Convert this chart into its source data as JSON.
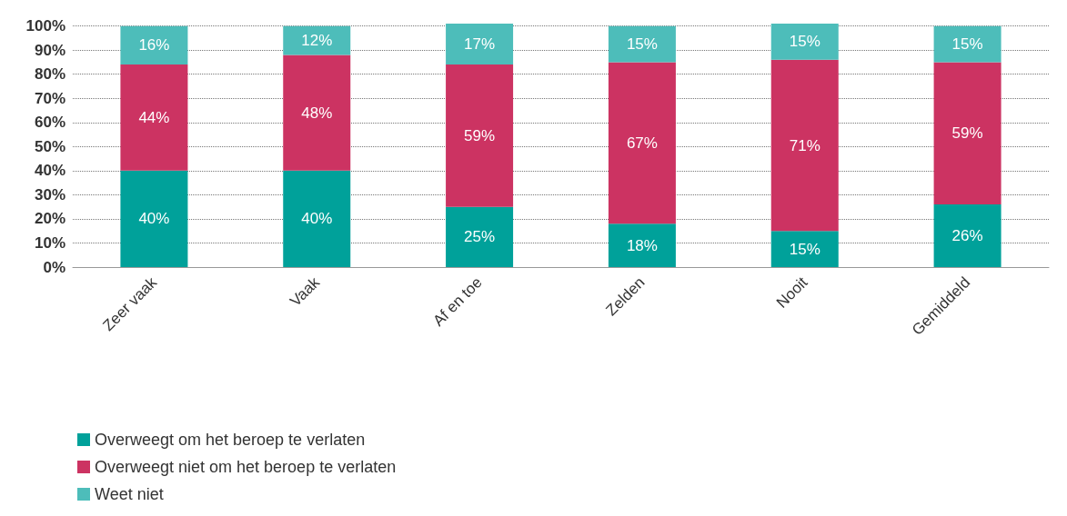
{
  "chart_data": {
    "type": "bar",
    "stacked": true,
    "categories": [
      "Zeer vaak",
      "Vaak",
      "Af en toe",
      "Zelden",
      "Nooit",
      "Gemiddeld"
    ],
    "series": [
      {
        "name": "Overweegt om het beroep te verlaten",
        "color": "#00a19a",
        "values": [
          40,
          40,
          25,
          18,
          15,
          26
        ],
        "value_labels": [
          "40%",
          "40%",
          "25%",
          "18%",
          "15%",
          "26%"
        ]
      },
      {
        "name": "Overweegt niet om het beroep te verlaten",
        "color": "#cc3362",
        "values": [
          44,
          48,
          59,
          67,
          71,
          59
        ],
        "value_labels": [
          "44%",
          "48%",
          "59%",
          "67%",
          "71%",
          "59%"
        ]
      },
      {
        "name": "Weet niet",
        "color": "#4dbdba",
        "values": [
          16,
          12,
          17,
          15,
          15,
          15
        ],
        "value_labels": [
          "16%",
          "12%",
          "17%",
          "15%",
          "15%",
          "15%"
        ]
      }
    ],
    "ylim": [
      0,
      101
    ],
    "yticks": [
      {
        "value": 0,
        "label": "0%"
      },
      {
        "value": 10,
        "label": "10%"
      },
      {
        "value": 20,
        "label": "20%"
      },
      {
        "value": 30,
        "label": "30%"
      },
      {
        "value": 40,
        "label": "40%"
      },
      {
        "value": 50,
        "label": "50%"
      },
      {
        "value": 60,
        "label": "60%"
      },
      {
        "value": 70,
        "label": "70%"
      },
      {
        "value": 80,
        "label": "80%"
      },
      {
        "value": 90,
        "label": "90%"
      },
      {
        "value": 100,
        "label": "100%"
      }
    ],
    "grid": "y",
    "legend": "bottom left"
  }
}
